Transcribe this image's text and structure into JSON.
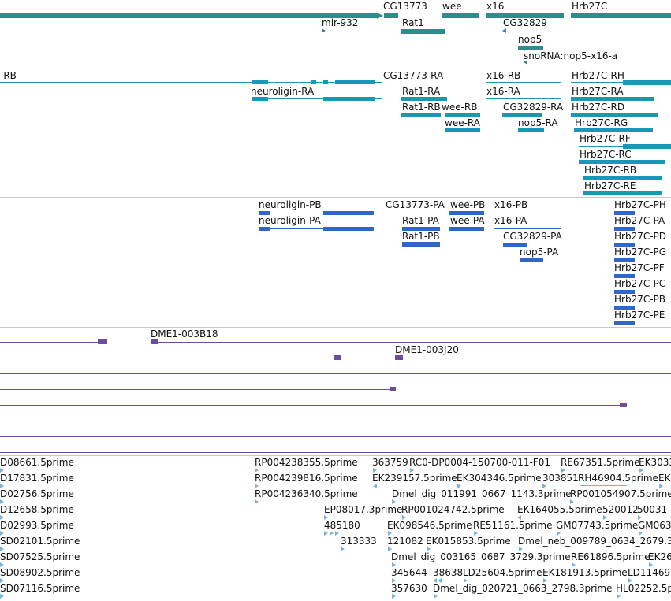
{
  "colors": {
    "gene": "#2f8c8c",
    "mrna": "#1798b4",
    "cds": "#3265c8",
    "clone": "#6e4aa0",
    "est": "#78b4dc",
    "separator": "#c8c8c8"
  },
  "tracks": {
    "genes": {
      "labels": [
        "CG13773",
        "wee",
        "x16",
        "Hrb27C",
        "mir-932",
        "Rat1",
        "CG32829",
        "nop5",
        "snoRNA:nop5-x16-a"
      ]
    },
    "transcripts": {
      "labels": [
        "-RB",
        "CG13773-RA",
        "x16-RB",
        "Hrb27C-RH",
        "neuroligin-RA",
        "Rat1-RA",
        "x16-RA",
        "Hrb27C-RA",
        "Rat1-RB",
        "wee-RB",
        "CG32829-RA",
        "Hrb27C-RD",
        "wee-RA",
        "nop5-RA",
        "Hrb27C-RG",
        "Hrb27C-RF",
        "Hrb27C-RC",
        "Hrb27C-RB",
        "Hrb27C-RE"
      ]
    },
    "proteins": {
      "labels": [
        "neuroligin-PB",
        "CG13773-PA",
        "wee-PB",
        "x16-PB",
        "Hrb27C-PH",
        "neuroligin-PA",
        "Rat1-PA",
        "wee-PA",
        "x16-PA",
        "Hrb27C-PA",
        "Rat1-PB",
        "CG32829-PA",
        "Hrb27C-PD",
        "nop5-PA",
        "Hrb27C-PG",
        "Hrb27C-PF",
        "Hrb27C-PC",
        "Hrb27C-PB",
        "Hrb27C-PE"
      ]
    },
    "clones": {
      "labels": [
        "DME1-003B18",
        "DME1-003J20"
      ]
    },
    "ests": {
      "labels": [
        "D08661.5prime",
        "RP004238355.5prime",
        "363759",
        "RC0-DP0004-150700-011-F01",
        "RE67351.5prime",
        "EK3033",
        "D17831.5prime",
        "RP004239816.5prime",
        "EK239157.5prime",
        "EK304346.5prime",
        "303851",
        "RH46904.5prime",
        "EK",
        "D02756.5prime",
        "RP004236340.5prime",
        "Dmel_dig_011991_0667_1143.3prime",
        "RP001054907.5prime",
        "D12658.5prime",
        "EP08017.3prime",
        "RP001024742.5prime",
        "EK164055.5prime",
        "520012",
        "50031",
        "D02993.5prime",
        "485180",
        "EK098546.5prime",
        "RE51161.5prime",
        "GM07743.5prime",
        "GM063",
        "SD02101.5prime",
        "313333",
        "121082",
        "EK015853.5prime",
        "Dmel_neb_009789_0634_2679.3",
        "SD07525.5prime",
        "Dmel_dig_003165_0687_3729.3prime",
        "RE61896.5prime",
        "EK26",
        "SD08902.5prime",
        "345644",
        "38638",
        "LD25604.5prime",
        "EK181913.5prime",
        "LD11469",
        "SD07116.5prime",
        "357630",
        "Dmel_dig_020721_0663_2798.3prime",
        "HL02252.5prime"
      ]
    }
  }
}
